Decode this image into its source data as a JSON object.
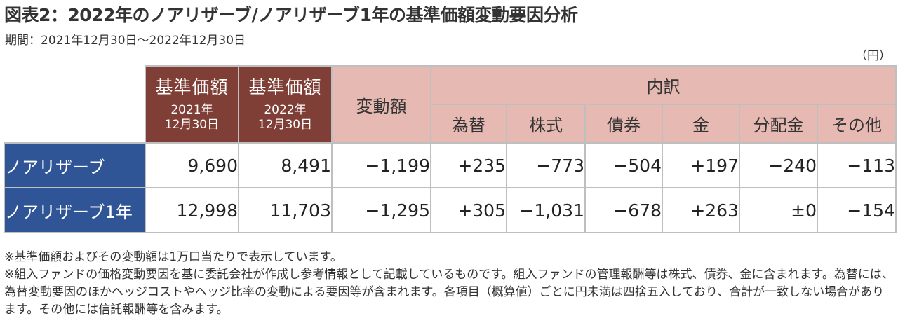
{
  "title": "図表2：2022年のノアリザーブ/ノアリザーブ1年の基準価額変動要因分析",
  "period": "期間：2021年12月30日～2022年12月30日",
  "unit": "（円）",
  "header": {
    "col1_main": "基準価額",
    "col1_sub1": "2021年",
    "col1_sub2": "12月30日",
    "col2_main": "基準価額",
    "col2_sub1": "2022年",
    "col2_sub2": "12月30日",
    "change": "変動額",
    "breakdown": "内訳",
    "breakdown_cols": [
      "為替",
      "株式",
      "債券",
      "金",
      "分配金",
      "その他"
    ]
  },
  "rows": [
    {
      "name": "ノアリザーブ",
      "values": [
        "9,690",
        "8,491",
        "−1,199",
        "+235",
        "−773",
        "−504",
        "+197",
        "−240",
        "−113"
      ]
    },
    {
      "name": "ノアリザーブ1年",
      "values": [
        "12,998",
        "11,703",
        "−1,295",
        "+305",
        "−1,031",
        "−678",
        "+263",
        "±0",
        "−154"
      ]
    }
  ],
  "notes": [
    "※基準価額およびその変動額は1万口当たりで表示しています。",
    "※組入ファンドの価格変動要因を基に委託会社が作成し参考情報として記載しているものです。組入ファンドの管理報酬等は株式、債券、金に含まれます。為替には、為替変動要因のほかヘッジコストやヘッジ比率の変動による要因等が含まれます。各項目（概算値）ごとに円未満は四捨五入しており、合計が一致しない場合があります。その他には信託報酬等を含みます。"
  ],
  "colors": {
    "dark_header": "#7f3f36",
    "pink_header": "#e6b9b2",
    "row_header": "#2f5597",
    "border": "#bfbfbf"
  }
}
